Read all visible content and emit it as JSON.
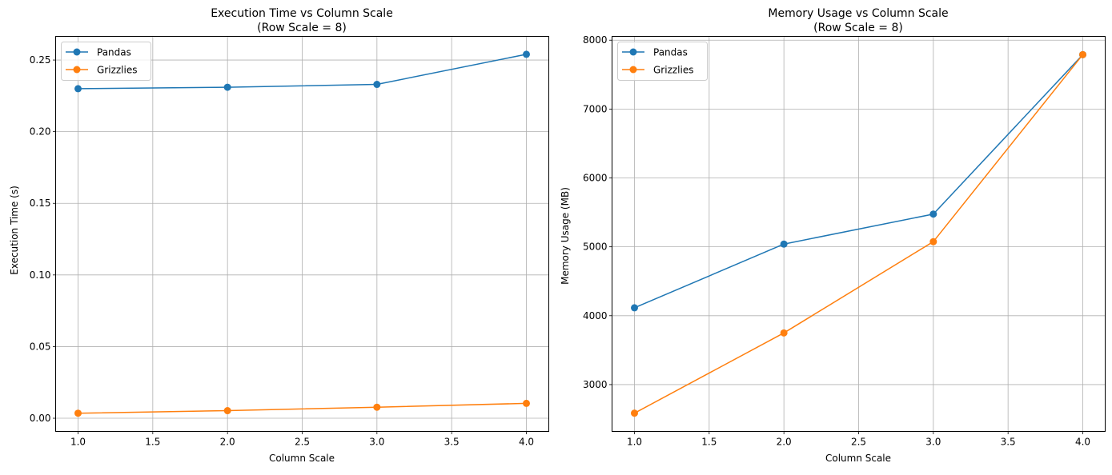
{
  "chart_data": [
    {
      "type": "line",
      "title": "Execution Time vs Column Scale",
      "subtitle": "(Row Scale = 8)",
      "xlabel": "Column Scale",
      "ylabel": "Execution Time (s)",
      "x": [
        1.0,
        2.0,
        3.0,
        4.0
      ],
      "xlim": [
        0.85,
        4.15
      ],
      "ylim": [
        -0.0092,
        0.2665
      ],
      "xticks": [
        1.0,
        1.5,
        2.0,
        2.5,
        3.0,
        3.5,
        4.0
      ],
      "yticks": [
        0.0,
        0.05,
        0.1,
        0.15,
        0.2,
        0.25
      ],
      "xtick_labels": [
        "1.0",
        "1.5",
        "2.0",
        "2.5",
        "3.0",
        "3.5",
        "4.0"
      ],
      "ytick_labels": [
        "0.00",
        "0.05",
        "0.10",
        "0.15",
        "0.20",
        "0.25"
      ],
      "grid": true,
      "legend": "top-left",
      "series": [
        {
          "name": "Pandas",
          "color": "#1f77b4",
          "marker": "circle",
          "values": [
            0.23,
            0.231,
            0.233,
            0.254
          ]
        },
        {
          "name": "Grizzlies",
          "color": "#ff7f0e",
          "marker": "circle",
          "values": [
            0.0035,
            0.0053,
            0.0077,
            0.0104
          ]
        }
      ]
    },
    {
      "type": "line",
      "title": "Memory Usage vs Column Scale",
      "subtitle": "(Row Scale = 8)",
      "xlabel": "Column Scale",
      "ylabel": "Memory Usage (MB)",
      "x": [
        1.0,
        2.0,
        3.0,
        4.0
      ],
      "xlim": [
        0.85,
        4.15
      ],
      "ylim": [
        2320,
        8055
      ],
      "xticks": [
        1.0,
        1.5,
        2.0,
        2.5,
        3.0,
        3.5,
        4.0
      ],
      "yticks": [
        3000,
        4000,
        5000,
        6000,
        7000,
        8000
      ],
      "xtick_labels": [
        "1.0",
        "1.5",
        "2.0",
        "2.5",
        "3.0",
        "3.5",
        "4.0"
      ],
      "ytick_labels": [
        "3000",
        "4000",
        "5000",
        "6000",
        "7000",
        "8000"
      ],
      "grid": true,
      "legend": "top-left",
      "series": [
        {
          "name": "Pandas",
          "color": "#1f77b4",
          "marker": "circle",
          "values": [
            4115,
            5040,
            5475,
            7790
          ]
        },
        {
          "name": "Grizzlies",
          "color": "#ff7f0e",
          "marker": "circle",
          "values": [
            2585,
            3750,
            5075,
            7790
          ]
        }
      ]
    }
  ]
}
